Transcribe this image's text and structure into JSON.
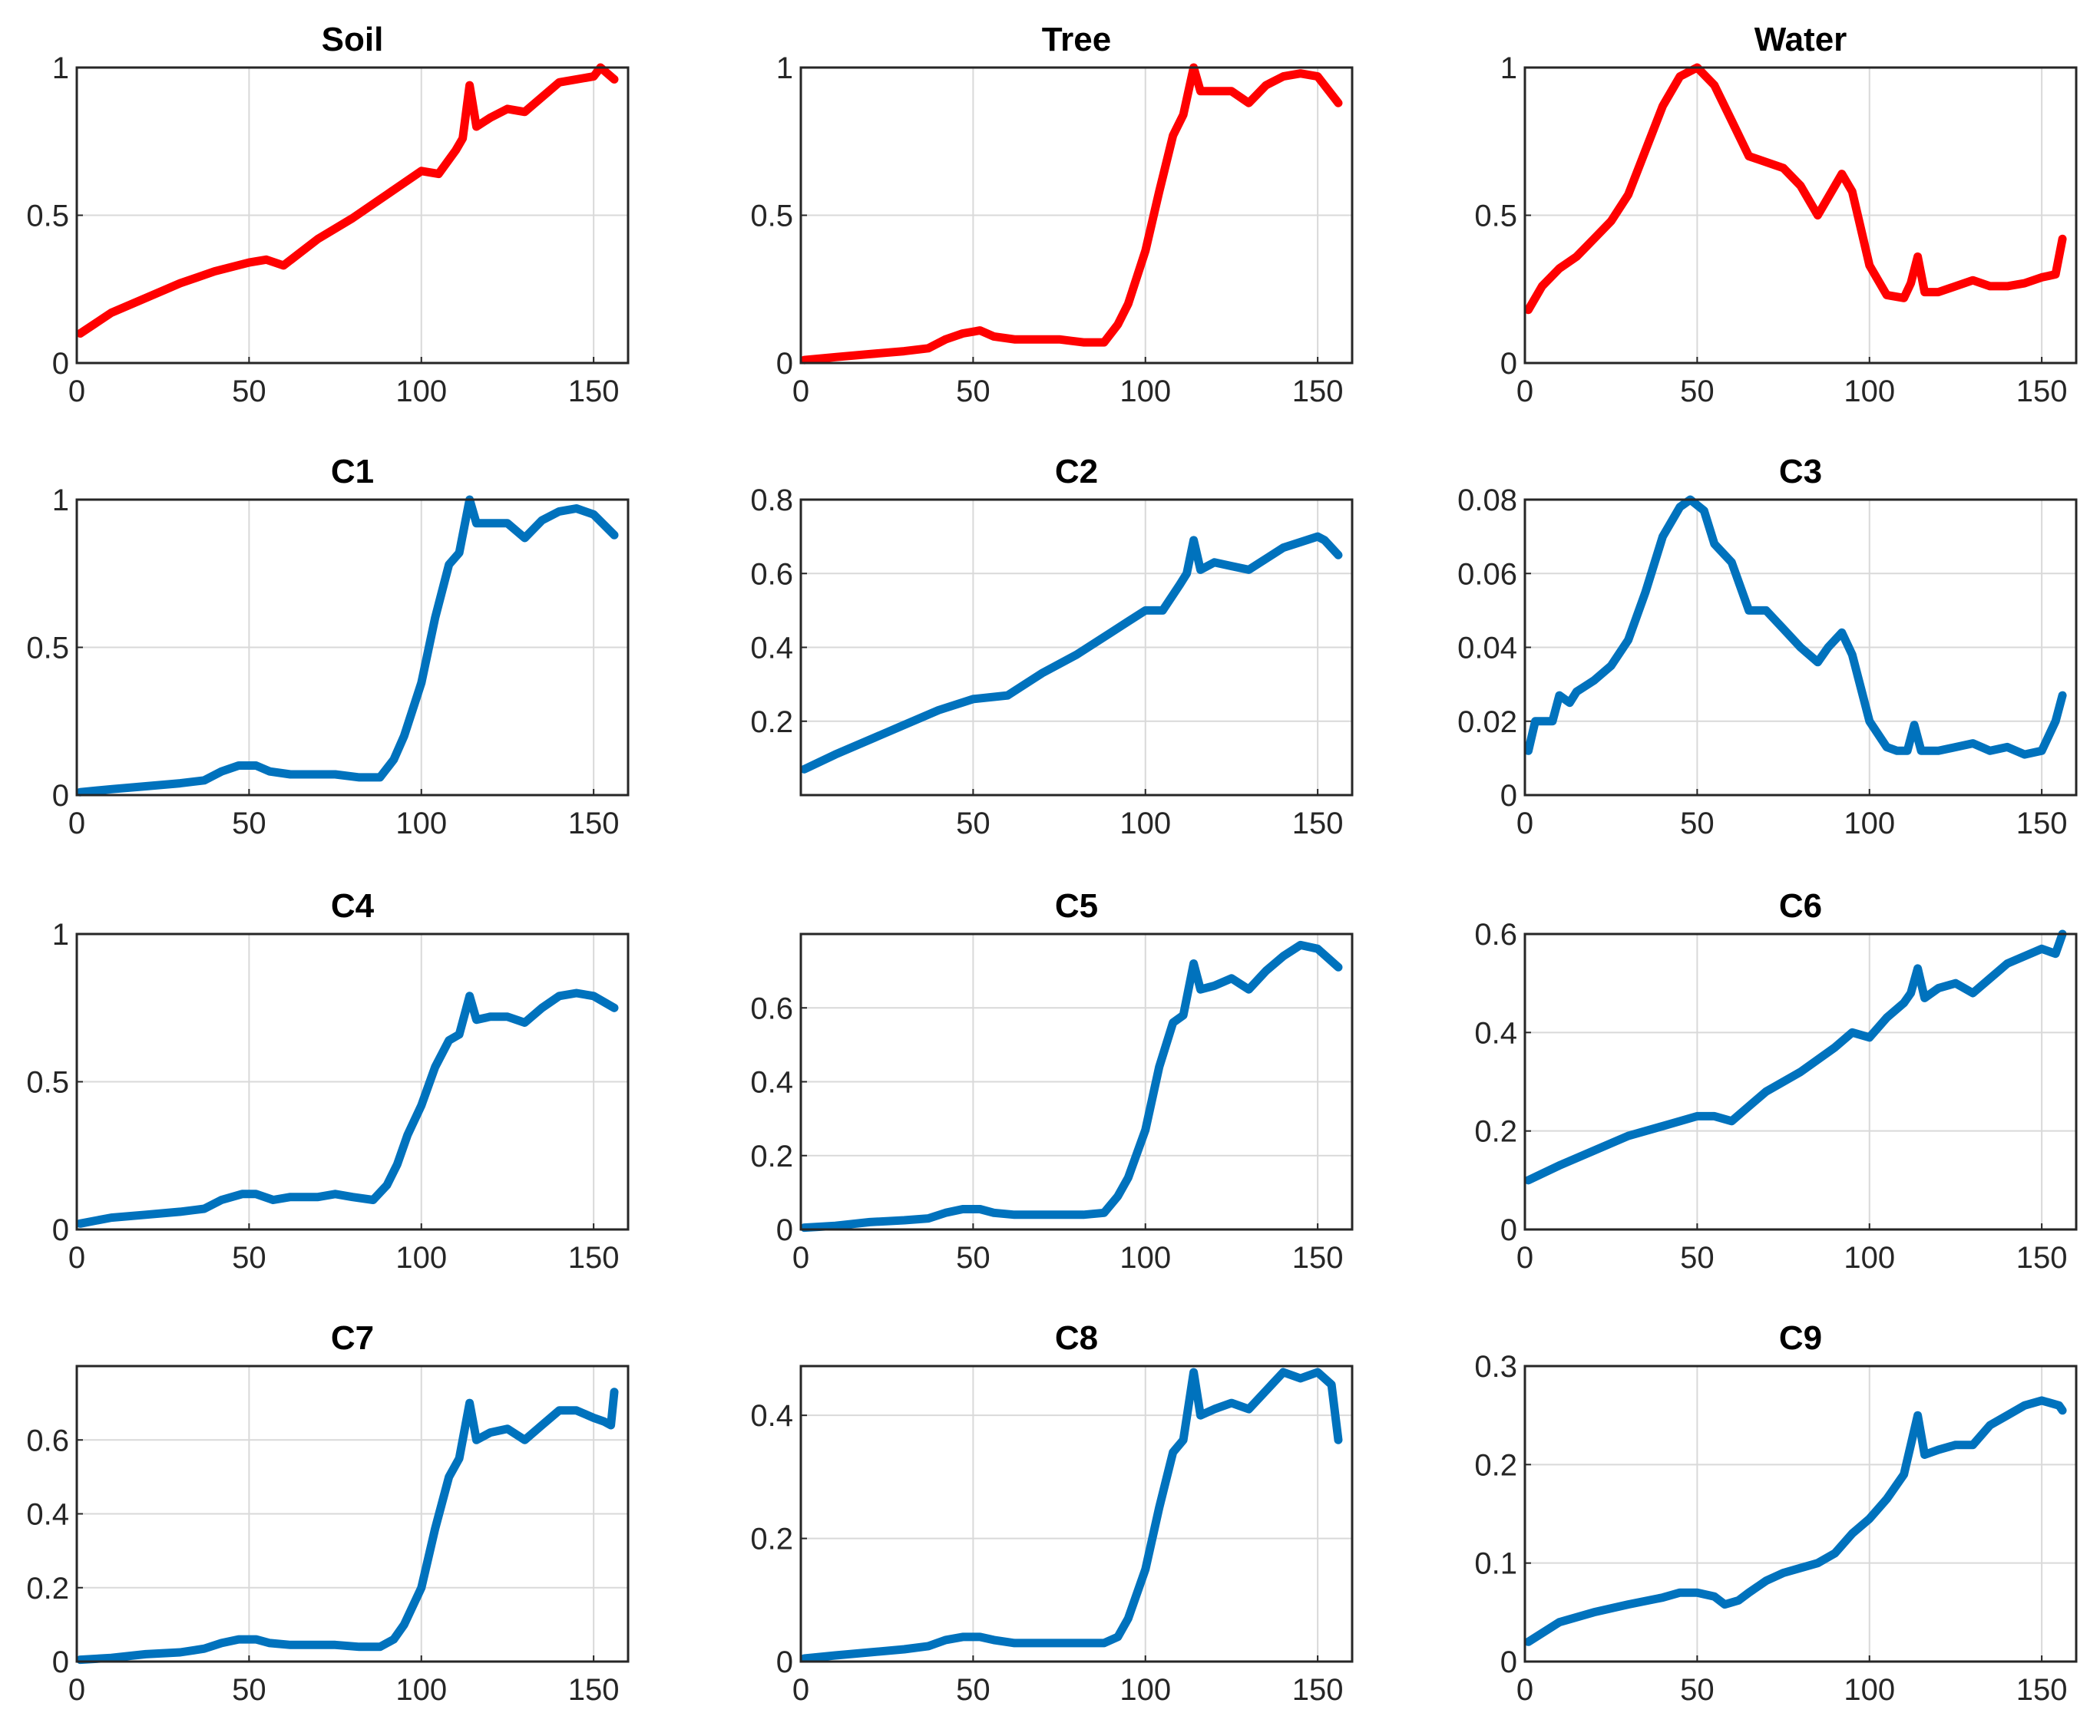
{
  "colors": {
    "reference": "#ff0000",
    "component": "#0072bd",
    "grid": "#d9d9d9",
    "axis": "#262626"
  },
  "chart_data": [
    {
      "type": "line",
      "title": "Soil",
      "color": "#ff0000",
      "xlim": [
        0,
        160
      ],
      "ylim": [
        0,
        1
      ],
      "xticks": [
        0,
        50,
        100,
        150
      ],
      "yticks": [
        0,
        0.5,
        1
      ],
      "yticklabels": [
        "0",
        "0.5",
        "1"
      ],
      "x": [
        1,
        10,
        20,
        30,
        40,
        50,
        55,
        60,
        70,
        80,
        90,
        100,
        105,
        110,
        112,
        114,
        116,
        120,
        125,
        130,
        140,
        150,
        152,
        156
      ],
      "y": [
        0.1,
        0.17,
        0.22,
        0.27,
        0.31,
        0.34,
        0.35,
        0.33,
        0.42,
        0.49,
        0.57,
        0.65,
        0.64,
        0.72,
        0.76,
        0.94,
        0.8,
        0.83,
        0.86,
        0.85,
        0.95,
        0.97,
        1.0,
        0.96
      ]
    },
    {
      "type": "line",
      "title": "Tree",
      "color": "#ff0000",
      "xlim": [
        0,
        160
      ],
      "ylim": [
        0,
        1
      ],
      "xticks": [
        0,
        50,
        100,
        150
      ],
      "yticks": [
        0,
        0.5,
        1
      ],
      "yticklabels": [
        "0",
        "0.5",
        "1"
      ],
      "x": [
        1,
        10,
        20,
        30,
        37,
        42,
        47,
        52,
        56,
        62,
        75,
        82,
        88,
        92,
        95,
        100,
        104,
        108,
        111,
        114,
        116,
        120,
        125,
        130,
        135,
        140,
        145,
        150,
        156
      ],
      "y": [
        0.01,
        0.02,
        0.03,
        0.04,
        0.05,
        0.08,
        0.1,
        0.11,
        0.09,
        0.08,
        0.08,
        0.07,
        0.07,
        0.13,
        0.2,
        0.38,
        0.58,
        0.77,
        0.84,
        1.0,
        0.92,
        0.92,
        0.92,
        0.88,
        0.94,
        0.97,
        0.98,
        0.97,
        0.88
      ]
    },
    {
      "type": "line",
      "title": "Water",
      "color": "#ff0000",
      "xlim": [
        0,
        160
      ],
      "ylim": [
        0,
        1
      ],
      "xticks": [
        0,
        50,
        100,
        150
      ],
      "yticks": [
        0,
        0.5,
        1
      ],
      "yticklabels": [
        "0",
        "0.5",
        "1"
      ],
      "x": [
        1,
        5,
        10,
        15,
        20,
        25,
        30,
        35,
        40,
        45,
        50,
        55,
        60,
        65,
        70,
        75,
        80,
        85,
        88,
        92,
        95,
        100,
        105,
        110,
        112,
        114,
        116,
        120,
        130,
        135,
        140,
        145,
        150,
        154,
        156
      ],
      "y": [
        0.18,
        0.26,
        0.32,
        0.36,
        0.42,
        0.48,
        0.57,
        0.72,
        0.87,
        0.97,
        1.0,
        0.94,
        0.82,
        0.7,
        0.68,
        0.66,
        0.6,
        0.5,
        0.56,
        0.64,
        0.58,
        0.33,
        0.23,
        0.22,
        0.27,
        0.36,
        0.24,
        0.24,
        0.28,
        0.26,
        0.26,
        0.27,
        0.29,
        0.3,
        0.42
      ]
    },
    {
      "type": "line",
      "title": "C1",
      "color": "#0072bd",
      "xlim": [
        0,
        160
      ],
      "ylim": [
        0,
        1
      ],
      "xticks": [
        0,
        50,
        100,
        150
      ],
      "yticks": [
        0,
        0.5,
        1
      ],
      "yticklabels": [
        "0",
        "0.5",
        "1"
      ],
      "x": [
        1,
        10,
        20,
        30,
        37,
        42,
        47,
        52,
        56,
        62,
        75,
        82,
        88,
        92,
        95,
        100,
        104,
        108,
        111,
        114,
        116,
        120,
        125,
        130,
        135,
        140,
        145,
        150,
        156
      ],
      "y": [
        0.01,
        0.02,
        0.03,
        0.04,
        0.05,
        0.08,
        0.1,
        0.1,
        0.08,
        0.07,
        0.07,
        0.06,
        0.06,
        0.12,
        0.2,
        0.38,
        0.6,
        0.78,
        0.82,
        1.0,
        0.92,
        0.92,
        0.92,
        0.87,
        0.93,
        0.96,
        0.97,
        0.95,
        0.88
      ]
    },
    {
      "type": "line",
      "title": "C2",
      "color": "#0072bd",
      "xlim": [
        0,
        160
      ],
      "ylim": [
        0,
        0.8
      ],
      "xticks": [
        50,
        100,
        150
      ],
      "yticks": [
        0.2,
        0.4,
        0.6,
        0.8
      ],
      "yticklabels": [
        "0.2",
        "0.4",
        "0.6",
        "0.8"
      ],
      "x": [
        1,
        10,
        20,
        30,
        40,
        50,
        60,
        70,
        80,
        90,
        95,
        100,
        105,
        110,
        112,
        114,
        116,
        120,
        125,
        130,
        140,
        150,
        152,
        156
      ],
      "y": [
        0.07,
        0.11,
        0.15,
        0.19,
        0.23,
        0.26,
        0.27,
        0.33,
        0.38,
        0.44,
        0.47,
        0.5,
        0.5,
        0.57,
        0.6,
        0.69,
        0.61,
        0.63,
        0.62,
        0.61,
        0.67,
        0.7,
        0.69,
        0.65
      ]
    },
    {
      "type": "line",
      "title": "C3",
      "color": "#0072bd",
      "xlim": [
        0,
        160
      ],
      "ylim": [
        0,
        0.08
      ],
      "xticks": [
        0,
        50,
        100,
        150
      ],
      "yticks": [
        0,
        0.02,
        0.04,
        0.06,
        0.08
      ],
      "yticklabels": [
        "0",
        "0.02",
        "0.04",
        "0.06",
        "0.08"
      ],
      "x": [
        1,
        3,
        8,
        10,
        13,
        15,
        20,
        25,
        30,
        35,
        40,
        45,
        48,
        52,
        55,
        60,
        65,
        70,
        75,
        80,
        85,
        88,
        92,
        95,
        100,
        105,
        108,
        111,
        113,
        115,
        120,
        130,
        135,
        140,
        145,
        150,
        154,
        156
      ],
      "y": [
        0.012,
        0.02,
        0.02,
        0.027,
        0.025,
        0.028,
        0.031,
        0.035,
        0.042,
        0.055,
        0.07,
        0.078,
        0.08,
        0.077,
        0.068,
        0.063,
        0.05,
        0.05,
        0.045,
        0.04,
        0.036,
        0.04,
        0.044,
        0.038,
        0.02,
        0.013,
        0.012,
        0.012,
        0.019,
        0.012,
        0.012,
        0.014,
        0.012,
        0.013,
        0.011,
        0.012,
        0.02,
        0.027
      ]
    },
    {
      "type": "line",
      "title": "C4",
      "color": "#0072bd",
      "xlim": [
        0,
        160
      ],
      "ylim": [
        0,
        1
      ],
      "xticks": [
        0,
        50,
        100,
        150
      ],
      "yticks": [
        0,
        0.5,
        1
      ],
      "yticklabels": [
        "0",
        "0.5",
        "1"
      ],
      "x": [
        1,
        10,
        20,
        30,
        37,
        42,
        48,
        52,
        57,
        62,
        70,
        75,
        80,
        86,
        90,
        93,
        96,
        100,
        104,
        108,
        111,
        114,
        116,
        120,
        125,
        130,
        135,
        140,
        145,
        150,
        156
      ],
      "y": [
        0.02,
        0.04,
        0.05,
        0.06,
        0.07,
        0.1,
        0.12,
        0.12,
        0.1,
        0.11,
        0.11,
        0.12,
        0.11,
        0.1,
        0.15,
        0.22,
        0.32,
        0.42,
        0.55,
        0.64,
        0.66,
        0.79,
        0.71,
        0.72,
        0.72,
        0.7,
        0.75,
        0.79,
        0.8,
        0.79,
        0.75
      ]
    },
    {
      "type": "line",
      "title": "C5",
      "color": "#0072bd",
      "xlim": [
        0,
        160
      ],
      "ylim": [
        0,
        0.8
      ],
      "xticks": [
        0,
        50,
        100,
        150
      ],
      "yticks": [
        0,
        0.2,
        0.4,
        0.6
      ],
      "yticklabels": [
        "0",
        "0.2",
        "0.4",
        "0.6"
      ],
      "x": [
        1,
        10,
        20,
        30,
        37,
        42,
        47,
        52,
        56,
        62,
        75,
        82,
        88,
        92,
        95,
        100,
        104,
        108,
        111,
        114,
        116,
        120,
        125,
        130,
        135,
        140,
        145,
        150,
        156
      ],
      "y": [
        0.005,
        0.01,
        0.02,
        0.025,
        0.03,
        0.045,
        0.055,
        0.055,
        0.045,
        0.04,
        0.04,
        0.04,
        0.045,
        0.09,
        0.14,
        0.27,
        0.44,
        0.56,
        0.58,
        0.72,
        0.65,
        0.66,
        0.68,
        0.65,
        0.7,
        0.74,
        0.77,
        0.76,
        0.71
      ]
    },
    {
      "type": "line",
      "title": "C6",
      "color": "#0072bd",
      "xlim": [
        0,
        160
      ],
      "ylim": [
        0,
        0.6
      ],
      "xticks": [
        0,
        50,
        100,
        150
      ],
      "yticks": [
        0,
        0.2,
        0.4,
        0.6
      ],
      "yticklabels": [
        "0",
        "0.2",
        "0.4",
        "0.6"
      ],
      "x": [
        1,
        10,
        20,
        30,
        40,
        50,
        55,
        60,
        70,
        80,
        90,
        95,
        100,
        105,
        110,
        112,
        114,
        116,
        120,
        125,
        130,
        140,
        150,
        154,
        156
      ],
      "y": [
        0.1,
        0.13,
        0.16,
        0.19,
        0.21,
        0.23,
        0.23,
        0.22,
        0.28,
        0.32,
        0.37,
        0.4,
        0.39,
        0.43,
        0.46,
        0.48,
        0.53,
        0.47,
        0.49,
        0.5,
        0.48,
        0.54,
        0.57,
        0.56,
        0.6
      ]
    },
    {
      "type": "line",
      "title": "C7",
      "color": "#0072bd",
      "xlim": [
        0,
        160
      ],
      "ylim": [
        0,
        0.8
      ],
      "xticks": [
        0,
        50,
        100,
        150
      ],
      "yticks": [
        0,
        0.2,
        0.4,
        0.6
      ],
      "yticklabels": [
        "0",
        "0.2",
        "0.4",
        "0.6"
      ],
      "x": [
        1,
        10,
        20,
        30,
        37,
        42,
        47,
        52,
        56,
        62,
        75,
        82,
        88,
        92,
        95,
        100,
        104,
        108,
        111,
        114,
        116,
        120,
        125,
        130,
        135,
        140,
        145,
        150,
        153,
        155,
        156
      ],
      "y": [
        0.005,
        0.01,
        0.02,
        0.025,
        0.035,
        0.05,
        0.06,
        0.06,
        0.05,
        0.045,
        0.045,
        0.04,
        0.04,
        0.06,
        0.1,
        0.2,
        0.36,
        0.5,
        0.55,
        0.7,
        0.6,
        0.62,
        0.63,
        0.6,
        0.64,
        0.68,
        0.68,
        0.66,
        0.65,
        0.64,
        0.73
      ]
    },
    {
      "type": "line",
      "title": "C8",
      "color": "#0072bd",
      "xlim": [
        0,
        160
      ],
      "ylim": [
        0,
        0.48
      ],
      "xticks": [
        0,
        50,
        100,
        150
      ],
      "yticks": [
        0,
        0.2,
        0.4
      ],
      "yticklabels": [
        "0",
        "0.2",
        "0.4"
      ],
      "x": [
        1,
        10,
        20,
        30,
        37,
        42,
        47,
        52,
        56,
        62,
        75,
        82,
        88,
        92,
        95,
        100,
        104,
        108,
        111,
        114,
        116,
        120,
        125,
        130,
        135,
        140,
        145,
        150,
        154,
        156
      ],
      "y": [
        0.005,
        0.01,
        0.015,
        0.02,
        0.025,
        0.035,
        0.04,
        0.04,
        0.035,
        0.03,
        0.03,
        0.03,
        0.03,
        0.04,
        0.07,
        0.15,
        0.25,
        0.34,
        0.36,
        0.47,
        0.4,
        0.41,
        0.42,
        0.41,
        0.44,
        0.47,
        0.46,
        0.47,
        0.45,
        0.36
      ]
    },
    {
      "type": "line",
      "title": "C9",
      "color": "#0072bd",
      "xlim": [
        0,
        160
      ],
      "ylim": [
        0,
        0.3
      ],
      "xticks": [
        0,
        50,
        100,
        150
      ],
      "yticks": [
        0,
        0.1,
        0.2,
        0.3
      ],
      "yticklabels": [
        "0",
        "0.1",
        "0.2",
        "0.3"
      ],
      "x": [
        1,
        10,
        20,
        30,
        40,
        45,
        50,
        55,
        58,
        62,
        65,
        70,
        75,
        80,
        85,
        90,
        95,
        100,
        105,
        110,
        112,
        114,
        116,
        120,
        125,
        130,
        135,
        140,
        145,
        150,
        155,
        156
      ],
      "y": [
        0.02,
        0.04,
        0.05,
        0.058,
        0.065,
        0.07,
        0.07,
        0.066,
        0.058,
        0.062,
        0.07,
        0.082,
        0.09,
        0.095,
        0.1,
        0.11,
        0.13,
        0.145,
        0.165,
        0.19,
        0.22,
        0.25,
        0.21,
        0.215,
        0.22,
        0.22,
        0.24,
        0.25,
        0.26,
        0.265,
        0.26,
        0.255
      ]
    }
  ]
}
